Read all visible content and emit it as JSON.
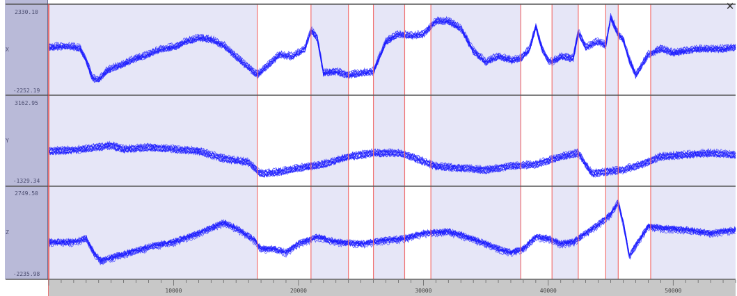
{
  "close_glyph": "✕",
  "colors": {
    "trace": "#1a1aff",
    "selected_band": "#e6e6f7",
    "unselected_band": "#ffffff",
    "boundary": "#f07070",
    "panel_border": "#555555",
    "axis_bg": "#c8c8c8"
  },
  "chart_data": {
    "type": "line",
    "x_range": [
      0,
      55000
    ],
    "x_ticks": [
      10000,
      20000,
      30000,
      40000,
      50000
    ],
    "x_tick_labels": [
      "10000",
      "20000",
      "30000",
      "40000",
      "50000"
    ],
    "segment_boundaries": [
      16700,
      21000,
      24000,
      26000,
      28500,
      30600,
      37800,
      40300,
      42400,
      44600,
      45600,
      48200
    ],
    "segment_shading": [
      "selected",
      "unselected",
      "selected",
      "unselected",
      "selected",
      "unselected",
      "selected",
      "unselected",
      "selected",
      "unselected",
      "selected",
      "unselected",
      "selected"
    ],
    "trace_count": 12,
    "panels": [
      {
        "label": "X",
        "y_max_label": "2330.10",
        "y_min_label": "-2252.19",
        "ylim": [
          -2252.19,
          2330.1
        ],
        "x": [
          0,
          1500,
          2500,
          3000,
          3500,
          4000,
          4600,
          5200,
          6000,
          7000,
          8000,
          9000,
          10000,
          11000,
          12000,
          13000,
          14000,
          15000,
          16000,
          16700,
          17500,
          18500,
          19500,
          20500,
          21000,
          21500,
          22000,
          23000,
          24000,
          25000,
          26000,
          27000,
          28000,
          29000,
          30000,
          31000,
          32000,
          33000,
          34000,
          35000,
          36000,
          37000,
          37800,
          38500,
          39000,
          39500,
          40000,
          40300,
          41000,
          42000,
          42400,
          43000,
          44000,
          44600,
          45000,
          45600,
          46000,
          46500,
          47000,
          48000,
          49000,
          50000,
          51000,
          52000,
          53000,
          54000,
          55000
        ],
        "y": [
          200,
          250,
          150,
          -500,
          -1450,
          -1550,
          -1100,
          -900,
          -700,
          -400,
          -200,
          100,
          200,
          500,
          700,
          600,
          300,
          -300,
          -900,
          -1300,
          -800,
          -200,
          -300,
          100,
          1100,
          700,
          -1200,
          -1100,
          -1300,
          -1200,
          -1100,
          500,
          900,
          800,
          900,
          1600,
          1600,
          1200,
          0,
          -600,
          -300,
          -500,
          -400,
          100,
          1300,
          100,
          -500,
          -600,
          -300,
          -400,
          1000,
          200,
          500,
          300,
          1800,
          900,
          600,
          -500,
          -1300,
          -200,
          100,
          -100,
          0,
          100,
          100,
          100,
          200
        ]
      },
      {
        "label": "Y",
        "y_max_label": "3162.95",
        "y_min_label": "-1329.34",
        "ylim": [
          -1329.34,
          3162.95
        ],
        "x": [
          0,
          2000,
          4000,
          5000,
          6000,
          8000,
          10000,
          12000,
          14000,
          16000,
          17000,
          18500,
          20000,
          22000,
          24000,
          26000,
          28000,
          29000,
          31000,
          33000,
          35000,
          37000,
          39000,
          41000,
          42400,
          43500,
          44600,
          46000,
          47500,
          49000,
          51000,
          53000,
          55000
        ],
        "y": [
          400,
          450,
          600,
          700,
          500,
          600,
          500,
          400,
          0,
          -200,
          -800,
          -700,
          -500,
          -300,
          100,
          300,
          300,
          100,
          -400,
          -500,
          -600,
          -400,
          -300,
          100,
          300,
          -800,
          -700,
          -600,
          -300,
          100,
          200,
          300,
          200
        ]
      },
      {
        "label": "Z",
        "y_max_label": "2749.50",
        "y_min_label": "-2235.98",
        "ylim": [
          -2235.98,
          2749.5
        ],
        "x": [
          0,
          2000,
          3000,
          3600,
          4200,
          5000,
          7000,
          8500,
          10000,
          12000,
          13000,
          14000,
          15000,
          16500,
          17000,
          18000,
          19000,
          20000,
          21500,
          23000,
          25000,
          27000,
          28500,
          30000,
          32000,
          33000,
          35000,
          36000,
          37000,
          38000,
          39000,
          40000,
          41000,
          42000,
          42400,
          43000,
          44000,
          45000,
          45600,
          46000,
          46500,
          47000,
          48000,
          49000,
          51000,
          53000,
          55000
        ],
        "y": [
          -300,
          -300,
          -100,
          -900,
          -1400,
          -1200,
          -800,
          -500,
          -300,
          200,
          500,
          800,
          500,
          -200,
          -700,
          -700,
          -900,
          -400,
          0,
          -300,
          -400,
          -200,
          -100,
          200,
          300,
          100,
          -400,
          -700,
          -900,
          -700,
          0,
          -100,
          -400,
          -300,
          -100,
          200,
          700,
          1300,
          2000,
          800,
          -1100,
          -500,
          600,
          500,
          400,
          200,
          400
        ]
      }
    ]
  }
}
